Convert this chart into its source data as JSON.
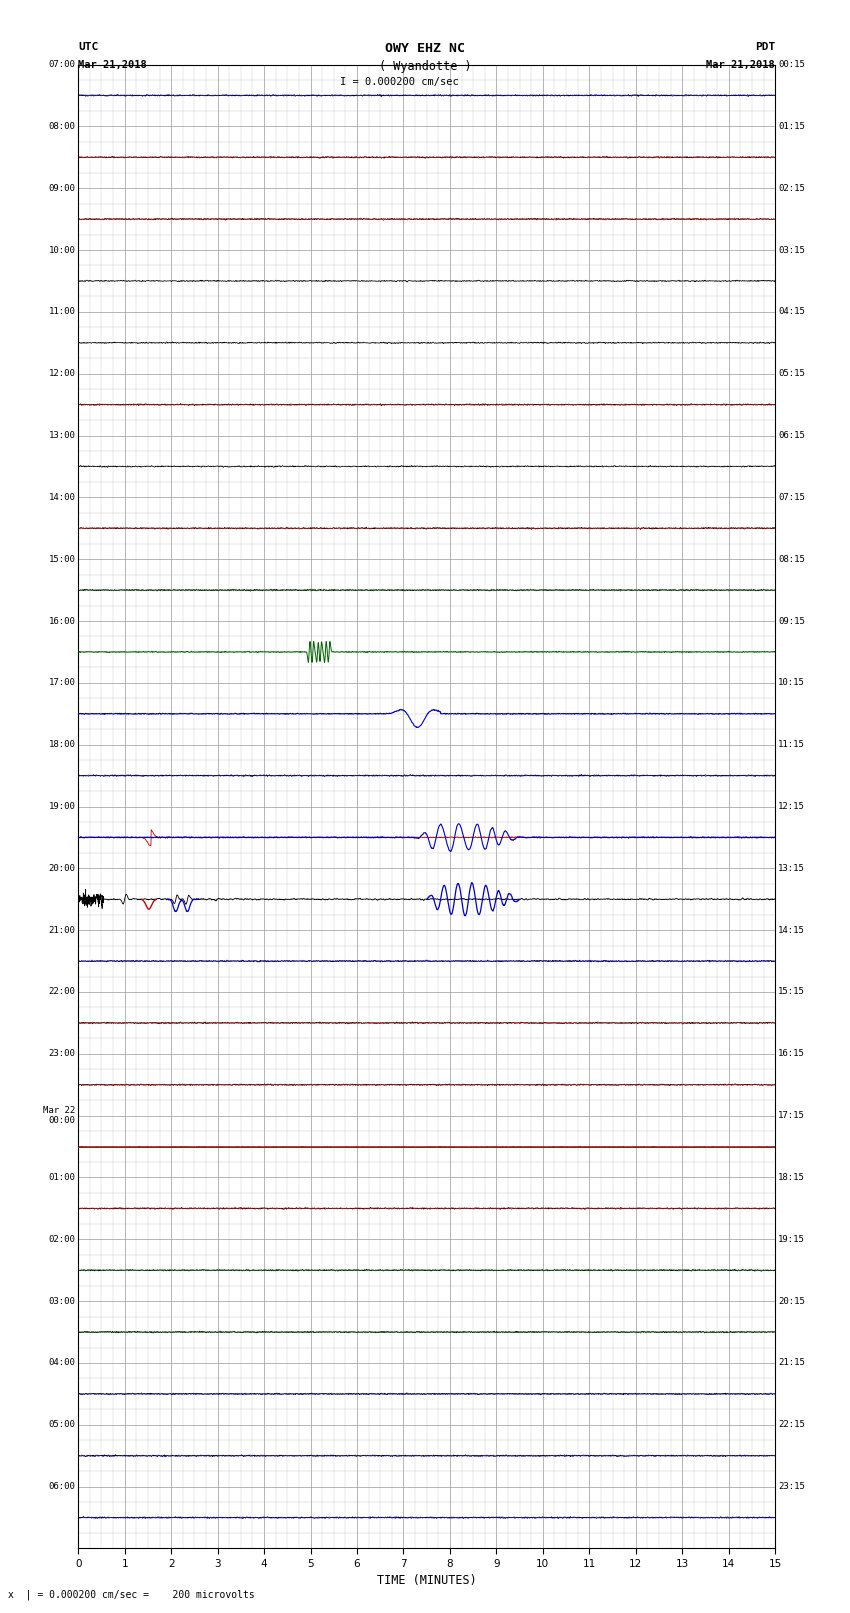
{
  "title_line1": "OWY EHZ NC",
  "title_line2": "( Wyandotte )",
  "scale_text": "I = 0.000200 cm/sec",
  "footer_text": "x  | = 0.000200 cm/sec =    200 microvolts",
  "utc_label": "UTC",
  "utc_date": "Mar 21,2018",
  "pdt_label": "PDT",
  "pdt_date": "Mar 21,2018",
  "xlabel": "TIME (MINUTES)",
  "xlim": [
    0,
    15
  ],
  "xticks": [
    0,
    1,
    2,
    3,
    4,
    5,
    6,
    7,
    8,
    9,
    10,
    11,
    12,
    13,
    14,
    15
  ],
  "num_rows": 24,
  "left_labels": [
    "07:00",
    "08:00",
    "09:00",
    "10:00",
    "11:00",
    "12:00",
    "13:00",
    "14:00",
    "15:00",
    "16:00",
    "17:00",
    "18:00",
    "19:00",
    "20:00",
    "21:00",
    "22:00",
    "23:00",
    "Mar 22\n00:00",
    "01:00",
    "02:00",
    "03:00",
    "04:00",
    "05:00",
    "06:00"
  ],
  "right_labels": [
    "00:15",
    "01:15",
    "02:15",
    "03:15",
    "04:15",
    "05:15",
    "06:15",
    "07:15",
    "08:15",
    "09:15",
    "10:15",
    "11:15",
    "12:15",
    "13:15",
    "14:15",
    "15:15",
    "16:15",
    "17:15",
    "18:15",
    "19:15",
    "20:15",
    "21:15",
    "22:15",
    "23:15"
  ],
  "background_color": "#ffffff",
  "trace_color_normal": "#000000",
  "trace_color_red": "#cc0000",
  "trace_color_blue": "#0000cc",
  "trace_color_green": "#006600",
  "grid_color": "#999999",
  "noise_amplitude": 0.03
}
